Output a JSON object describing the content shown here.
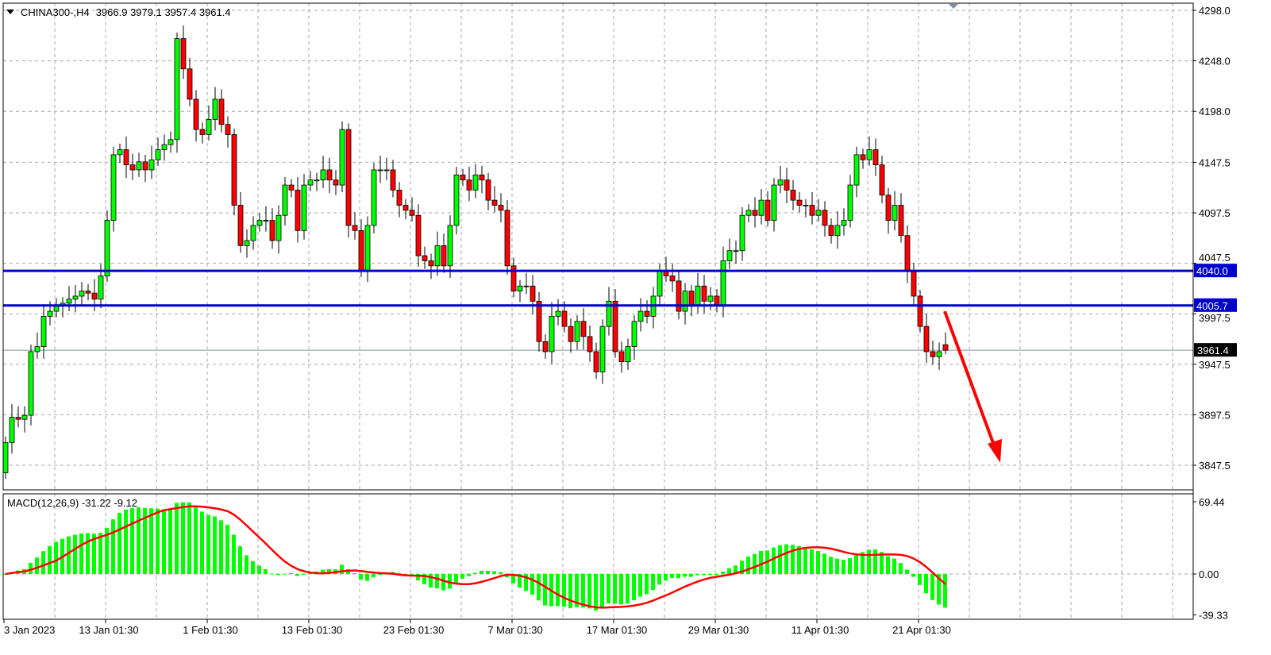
{
  "header": {
    "symbol": "CHINA300-,H4",
    "ohlc_text": "3966.9 3979.1 3957.4 3961.4"
  },
  "chart_data": {
    "type": "candlestick",
    "symbol": "CHINA300-",
    "timeframe": "H4",
    "last": {
      "open": 3966.9,
      "high": 3979.1,
      "low": 3957.4,
      "close": 3961.4
    },
    "ylim": [
      3835,
      4305
    ],
    "price_ticks": [
      "4298.0",
      "4248.0",
      "4198.0",
      "4147.5",
      "4097.5",
      "4047.5",
      "3997.5",
      "3947.5",
      "3897.5",
      "3847.5"
    ],
    "time_ticks": [
      "3 Jan 2023",
      "13 Jan 01:30",
      "1 Feb 01:30",
      "13 Feb 01:30",
      "23 Feb 01:30",
      "7 Mar 01:30",
      "17 Mar 01:30",
      "29 Mar 01:30",
      "11 Apr 01:30",
      "21 Apr 01:30"
    ],
    "grid": true,
    "first_open": 3840,
    "closes": [
      3870,
      3895,
      3893,
      3897,
      3960,
      3965,
      3995,
      4000,
      4005,
      4008,
      4012,
      4015,
      4020,
      4018,
      4012,
      4035,
      4090,
      4155,
      4160,
      4145,
      4140,
      4148,
      4140,
      4150,
      4160,
      4165,
      4170,
      4270,
      4240,
      4210,
      4180,
      4175,
      4190,
      4210,
      4185,
      4175,
      4105,
      4065,
      4070,
      4085,
      4090,
      4090,
      4070,
      4095,
      4125,
      4120,
      4080,
      4125,
      4130,
      4130,
      4140,
      4130,
      4125,
      4180,
      4085,
      4080,
      4040,
      4085,
      4140,
      4140,
      4140,
      4120,
      4105,
      4100,
      4095,
      4055,
      4050,
      4045,
      4065,
      4045,
      4085,
      4135,
      4130,
      4120,
      4135,
      4130,
      4110,
      4105,
      4100,
      4045,
      4020,
      4025,
      4025,
      4010,
      3970,
      3960,
      3995,
      4000,
      3985,
      3970,
      3990,
      3975,
      3960,
      3940,
      3985,
      4010,
      3960,
      3950,
      3965,
      3990,
      4000,
      3995,
      4015,
      4040,
      4035,
      4030,
      4000,
      4020,
      4005,
      4025,
      4010,
      4015,
      4005,
      4050,
      4060,
      4060,
      4095,
      4100,
      4095,
      4110,
      4090,
      4125,
      4130,
      4120,
      4110,
      4105,
      4105,
      4095,
      4100,
      4085,
      4075,
      4085,
      4090,
      4125,
      4155,
      4150,
      4160,
      4145,
      4115,
      4090,
      4105,
      4075,
      4040,
      4015,
      3985,
      3960,
      3955,
      3960,
      3961.4
    ],
    "horizontal_lines": [
      {
        "price": 4040.0,
        "label": "4040.0",
        "color": "#0000cc"
      },
      {
        "price": 4005.7,
        "label": "4005.7",
        "color": "#0000cc"
      }
    ],
    "bid_line": {
      "price": 3961.4,
      "label": "3961.4"
    },
    "arrow": {
      "color": "#ff0000",
      "direction": "down",
      "from_price": 4000,
      "to_price": 3850
    },
    "colors": {
      "bull": "#00ff00",
      "bear": "#ff0000",
      "outline": "#000000"
    },
    "indicator": {
      "label": "MACD(12,26,9) -31.22 -9.12",
      "fast": 12,
      "slow": 26,
      "signal": 9,
      "main": -31.22,
      "signal_value": -9.12,
      "ylim": [
        -39.33,
        69.44
      ],
      "ticks": [
        "69.44",
        "0.00",
        "-39.33"
      ],
      "histogram_color": "#00ff00",
      "signal_color": "#ff0000"
    }
  }
}
